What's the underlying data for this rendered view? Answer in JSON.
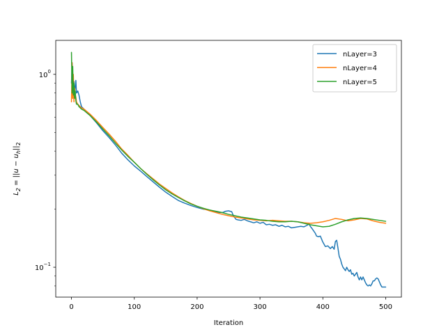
{
  "chart_data": {
    "type": "line",
    "title": "",
    "xlabel": "Iteration",
    "ylabel": "L_2 = ||u - u_h||_2",
    "xlim": [
      -25,
      525
    ],
    "ylim": [
      0.07,
      1.5
    ],
    "yscale": "log",
    "grid": false,
    "legend_position": "upper right",
    "x_ticks": [
      0,
      100,
      200,
      300,
      400,
      500
    ],
    "x_tick_labels": [
      "0",
      "100",
      "200",
      "300",
      "400",
      "500"
    ],
    "y_major_ticks": [
      0.1,
      1.0
    ],
    "y_minor_ticks": [
      0.08,
      0.09,
      0.2,
      0.3,
      0.4,
      0.5,
      0.6,
      0.7,
      0.8,
      0.9
    ],
    "series": [
      {
        "name": "nLayer=3",
        "color": "#1f77b4",
        "x": [
          0,
          1,
          2,
          3,
          4,
          5,
          6,
          7,
          8,
          10,
          12,
          14,
          16,
          20,
          30,
          40,
          50,
          60,
          70,
          80,
          90,
          100,
          110,
          120,
          130,
          140,
          150,
          160,
          170,
          180,
          190,
          200,
          210,
          220,
          230,
          240,
          245,
          250,
          255,
          258,
          262,
          265,
          270,
          275,
          280,
          285,
          290,
          295,
          300,
          305,
          310,
          315,
          320,
          325,
          330,
          335,
          340,
          345,
          350,
          355,
          360,
          365,
          370,
          375,
          378,
          380,
          382,
          385,
          388,
          390,
          393,
          396,
          400,
          404,
          408,
          412,
          415,
          418,
          420,
          422,
          424,
          426,
          428,
          430,
          432,
          434,
          436,
          438,
          440,
          442,
          444,
          446,
          448,
          450,
          452,
          454,
          456,
          458,
          460,
          462,
          464,
          466,
          468,
          470,
          472,
          474,
          476,
          478,
          480,
          482,
          484,
          486,
          488,
          490,
          492,
          494,
          496,
          498,
          500
        ],
        "values": [
          0.9,
          1.15,
          1.0,
          0.85,
          0.92,
          0.8,
          0.86,
          0.93,
          0.8,
          0.82,
          0.78,
          0.72,
          0.68,
          0.66,
          0.61,
          0.56,
          0.51,
          0.47,
          0.43,
          0.39,
          0.36,
          0.335,
          0.315,
          0.295,
          0.277,
          0.26,
          0.245,
          0.233,
          0.222,
          0.215,
          0.209,
          0.204,
          0.2,
          0.198,
          0.193,
          0.192,
          0.195,
          0.196,
          0.194,
          0.184,
          0.177,
          0.176,
          0.175,
          0.177,
          0.174,
          0.172,
          0.17,
          0.172,
          0.169,
          0.171,
          0.166,
          0.167,
          0.165,
          0.166,
          0.163,
          0.165,
          0.162,
          0.163,
          0.16,
          0.161,
          0.162,
          0.163,
          0.162,
          0.165,
          0.168,
          0.163,
          0.16,
          0.155,
          0.15,
          0.145,
          0.144,
          0.145,
          0.135,
          0.128,
          0.129,
          0.125,
          0.128,
          0.124,
          0.136,
          0.138,
          0.126,
          0.114,
          0.11,
          0.104,
          0.1,
          0.098,
          0.096,
          0.1,
          0.097,
          0.095,
          0.097,
          0.092,
          0.093,
          0.09,
          0.092,
          0.094,
          0.089,
          0.086,
          0.089,
          0.086,
          0.089,
          0.086,
          0.083,
          0.081,
          0.08,
          0.081,
          0.08,
          0.082,
          0.085,
          0.085,
          0.087,
          0.088,
          0.087,
          0.084,
          0.081,
          0.079,
          0.079,
          0.079,
          0.079
        ]
      },
      {
        "name": "nLayer=4",
        "color": "#ff7f0e",
        "x": [
          0,
          1,
          2,
          3,
          4,
          5,
          6,
          7,
          8,
          10,
          12,
          14,
          16,
          20,
          30,
          40,
          50,
          60,
          70,
          80,
          90,
          100,
          110,
          120,
          130,
          140,
          150,
          160,
          170,
          180,
          190,
          200,
          210,
          220,
          230,
          240,
          250,
          260,
          270,
          280,
          290,
          300,
          310,
          320,
          330,
          340,
          350,
          360,
          370,
          380,
          390,
          400,
          410,
          420,
          430,
          440,
          450,
          460,
          470,
          480,
          490,
          500
        ],
        "values": [
          0.72,
          1.15,
          0.75,
          1.0,
          0.72,
          0.85,
          0.78,
          0.76,
          0.72,
          0.7,
          0.69,
          0.68,
          0.67,
          0.66,
          0.62,
          0.575,
          0.53,
          0.49,
          0.45,
          0.41,
          0.38,
          0.35,
          0.325,
          0.305,
          0.287,
          0.27,
          0.256,
          0.243,
          0.232,
          0.222,
          0.214,
          0.207,
          0.201,
          0.196,
          0.192,
          0.188,
          0.185,
          0.182,
          0.18,
          0.178,
          0.176,
          0.175,
          0.174,
          0.175,
          0.174,
          0.173,
          0.173,
          0.172,
          0.17,
          0.169,
          0.17,
          0.172,
          0.175,
          0.179,
          0.177,
          0.174,
          0.176,
          0.179,
          0.178,
          0.174,
          0.171,
          0.169
        ]
      },
      {
        "name": "nLayer=5",
        "color": "#2ca02c",
        "x": [
          0,
          1,
          2,
          3,
          4,
          5,
          6,
          7,
          8,
          10,
          12,
          14,
          16,
          20,
          30,
          40,
          50,
          60,
          70,
          80,
          90,
          100,
          110,
          120,
          130,
          140,
          150,
          160,
          170,
          180,
          190,
          200,
          210,
          220,
          230,
          240,
          250,
          260,
          270,
          280,
          290,
          300,
          310,
          320,
          330,
          340,
          350,
          360,
          370,
          380,
          390,
          400,
          410,
          420,
          430,
          440,
          450,
          460,
          470,
          480,
          490,
          500
        ],
        "values": [
          1.3,
          0.8,
          1.1,
          0.78,
          0.9,
          0.75,
          0.82,
          0.73,
          0.7,
          0.7,
          0.68,
          0.67,
          0.66,
          0.65,
          0.61,
          0.565,
          0.52,
          0.48,
          0.44,
          0.405,
          0.375,
          0.35,
          0.325,
          0.303,
          0.284,
          0.267,
          0.252,
          0.24,
          0.23,
          0.221,
          0.213,
          0.207,
          0.202,
          0.198,
          0.195,
          0.192,
          0.188,
          0.185,
          0.182,
          0.18,
          0.178,
          0.176,
          0.175,
          0.173,
          0.172,
          0.172,
          0.173,
          0.172,
          0.169,
          0.166,
          0.164,
          0.162,
          0.163,
          0.167,
          0.172,
          0.176,
          0.179,
          0.18,
          0.179,
          0.177,
          0.175,
          0.173
        ]
      }
    ]
  }
}
